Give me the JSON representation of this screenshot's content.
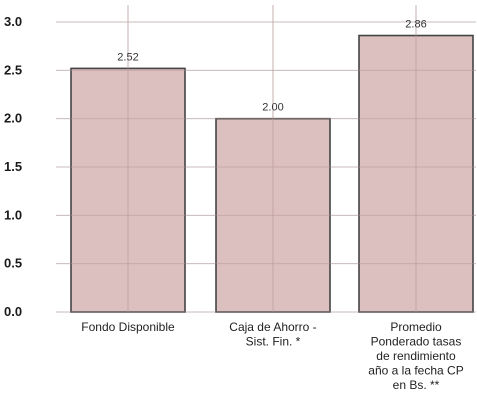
{
  "chart_data": {
    "type": "bar",
    "categories": [
      [
        "Fondo Disponible"
      ],
      [
        "Caja de Ahorro -",
        "Sist. Fin. *"
      ],
      [
        "Promedio",
        "Ponderado tasas",
        "de rendimiento",
        "año a la fecha CP",
        "en Bs. **"
      ]
    ],
    "values": [
      2.52,
      2.0,
      2.86
    ],
    "data_labels": [
      "2.52",
      "2.00",
      "2.86"
    ],
    "ytick_labels": [
      "0.0",
      "0.5",
      "1.0",
      "1.5",
      "2.0",
      "2.5",
      "3.0"
    ],
    "yticks": [
      0,
      0.5,
      1.0,
      1.5,
      2.0,
      2.5,
      3.0
    ],
    "ylim": [
      0,
      3.0
    ],
    "grid": true,
    "colors": {
      "bar_fill": "#d6b4b4",
      "bar_stroke": "#444444",
      "grid": "#d8d8d8"
    }
  }
}
